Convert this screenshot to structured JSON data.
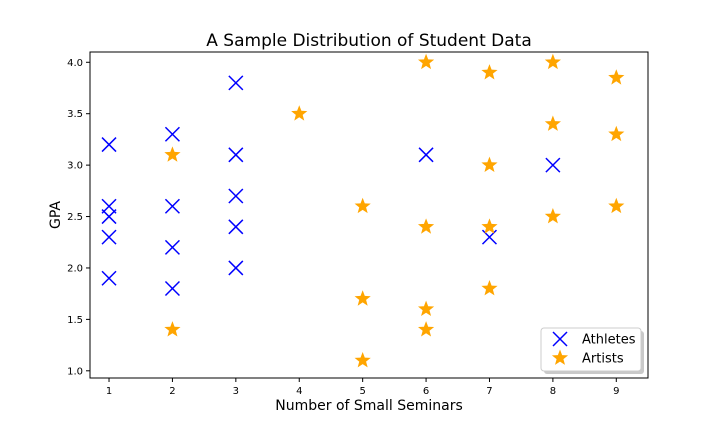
{
  "chart_data": {
    "type": "scatter",
    "title": "A Sample Distribution of Student Data",
    "xlabel": "Number of Small Seminars",
    "ylabel": "GPA",
    "xlim": [
      0.7,
      9.5
    ],
    "ylim": [
      0.93,
      4.1
    ],
    "xticks": [
      "1",
      "2",
      "3",
      "4",
      "5",
      "6",
      "7",
      "8",
      "9"
    ],
    "yticks": [
      "1.0",
      "1.5",
      "2.0",
      "2.5",
      "3.0",
      "3.5",
      "4.0"
    ],
    "grid": false,
    "legend_position": "bottom-right",
    "series": [
      {
        "name": "Athletes",
        "marker": "x",
        "color": "#0000ff",
        "points": [
          [
            1,
            3.2
          ],
          [
            1,
            2.6
          ],
          [
            1,
            2.5
          ],
          [
            1,
            2.3
          ],
          [
            1,
            1.9
          ],
          [
            2,
            3.3
          ],
          [
            2,
            2.6
          ],
          [
            2,
            2.2
          ],
          [
            2,
            1.8
          ],
          [
            3,
            3.8
          ],
          [
            3,
            3.1
          ],
          [
            3,
            2.7
          ],
          [
            3,
            2.4
          ],
          [
            3,
            2.0
          ],
          [
            6,
            3.1
          ],
          [
            7,
            2.3
          ],
          [
            8,
            3.0
          ]
        ]
      },
      {
        "name": "Artists",
        "marker": "star",
        "color": "#ffa500",
        "points": [
          [
            2,
            3.1
          ],
          [
            2,
            1.4
          ],
          [
            4,
            3.5
          ],
          [
            5,
            2.6
          ],
          [
            5,
            1.7
          ],
          [
            5,
            1.1
          ],
          [
            6,
            4.0
          ],
          [
            6,
            2.4
          ],
          [
            6,
            1.6
          ],
          [
            6,
            1.4
          ],
          [
            7,
            3.9
          ],
          [
            7,
            3.0
          ],
          [
            7,
            2.4
          ],
          [
            7,
            1.8
          ],
          [
            8,
            4.0
          ],
          [
            8,
            3.4
          ],
          [
            8,
            2.5
          ],
          [
            9,
            3.85
          ],
          [
            9,
            3.3
          ],
          [
            9,
            2.6
          ]
        ]
      }
    ]
  }
}
